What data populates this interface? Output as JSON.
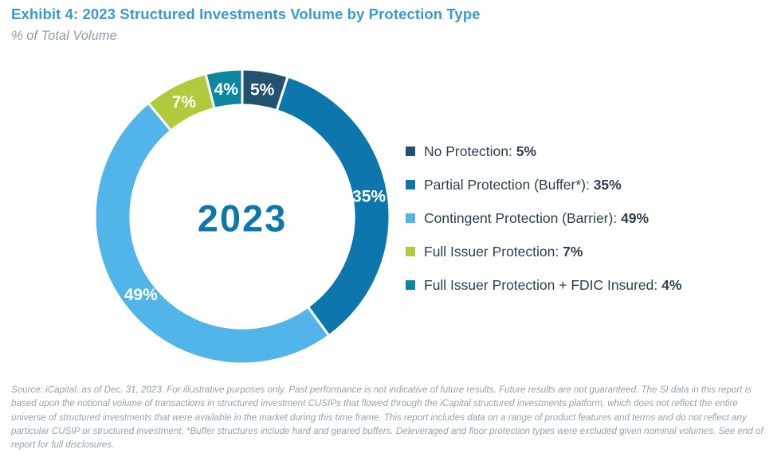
{
  "header": {
    "title": "Exhibit 4: 2023 Structured Investments Volume by Protection Type",
    "subtitle": "% of Total Volume"
  },
  "chart_data": {
    "type": "pie",
    "variant": "donut",
    "title": "Exhibit 4: 2023 Structured Investments Volume by Protection Type",
    "subtitle": "% of Total Volume",
    "center_label": "2023",
    "units": "% of Total Volume",
    "direction": "clockwise",
    "start_angle_deg": 0,
    "hole_ratio": 0.757,
    "legend_position": "right",
    "slice_label_color": "#ffffff",
    "center_label_color": "#0D76AD",
    "segments": [
      {
        "label": "No Protection",
        "value": 5,
        "pct_text": "5%",
        "color": "#235270"
      },
      {
        "label": "Partial Protection (Buffer*)",
        "value": 35,
        "pct_text": "35%",
        "color": "#0D76AD"
      },
      {
        "label": "Contingent Protection (Barrier)",
        "value": 49,
        "pct_text": "49%",
        "color": "#52B5EA"
      },
      {
        "label": "Full Issuer Protection",
        "value": 7,
        "pct_text": "7%",
        "color": "#AFCA3B"
      },
      {
        "label": "Full Issuer Protection + FDIC Insured",
        "value": 4,
        "pct_text": "4%",
        "color": "#0D86A0"
      }
    ]
  },
  "footnote": "Source: iCapital, as of Dec. 31, 2023. For illustrative purposes only. Past performance is not indicative of future results. Future results are not guaranteed. The SI data in this report is based upon the notional volume of transactions in structured investment CUSIPs that flowed through the iCapital structured investments platform, which does not reflect the entire universe of structured investments that were available in the market during this time frame. This report includes data on a range of product features and terms and do not reflect any particular CUSIP or structured investment. *Buffer structures include hard and geared buffers. Deleveraged and floor protection types were excluded given nominal volumes. See end of report for full disclosures.",
  "colors": {
    "title": "#3899D2",
    "subtitle": "#8E9CA6",
    "legend_text": "#2F4050",
    "footnote": "#94A2AD",
    "background": "#ffffff"
  }
}
